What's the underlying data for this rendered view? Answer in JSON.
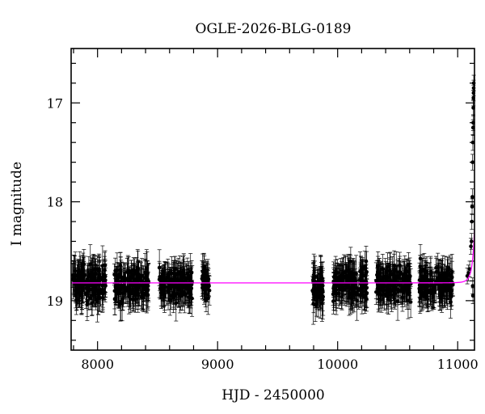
{
  "chart_data": {
    "type": "scatter",
    "title": "OGLE-2026-BLG-0189",
    "xlabel": "HJD - 2450000",
    "ylabel": "I magnitude",
    "xlim": [
      7780,
      11140
    ],
    "ylim": [
      19.5,
      16.45
    ],
    "y_inverted": true,
    "xticks": [
      8000,
      9000,
      10000,
      11000
    ],
    "yticks": [
      17,
      18,
      19
    ],
    "x_minor_step": 200,
    "y_minor_step": 0.2,
    "grid": false,
    "marker_color": "#000000",
    "model_color": "#ff00ff",
    "baseline_mag": 18.82,
    "seasons": [
      {
        "start": 7790,
        "end": 8070,
        "mean": 18.83,
        "scatter": 0.15,
        "error": 0.16
      },
      {
        "start": 8140,
        "end": 8430,
        "mean": 18.83,
        "scatter": 0.14,
        "error": 0.15
      },
      {
        "start": 8510,
        "end": 8790,
        "mean": 18.83,
        "scatter": 0.14,
        "error": 0.15
      },
      {
        "start": 8870,
        "end": 8935,
        "mean": 18.8,
        "scatter": 0.12,
        "error": 0.14
      },
      {
        "start": 9790,
        "end": 9880,
        "mean": 18.86,
        "scatter": 0.16,
        "error": 0.16
      },
      {
        "start": 9960,
        "end": 10250,
        "mean": 18.83,
        "scatter": 0.15,
        "error": 0.16
      },
      {
        "start": 10320,
        "end": 10610,
        "mean": 18.83,
        "scatter": 0.14,
        "error": 0.15
      },
      {
        "start": 10680,
        "end": 10960,
        "mean": 18.83,
        "scatter": 0.14,
        "error": 0.15
      }
    ],
    "event_points": [
      {
        "x": 11080,
        "y": 18.75
      },
      {
        "x": 11090,
        "y": 18.72
      },
      {
        "x": 11100,
        "y": 18.68
      },
      {
        "x": 11110,
        "y": 18.45
      },
      {
        "x": 11115,
        "y": 18.4
      },
      {
        "x": 11118,
        "y": 18.2
      },
      {
        "x": 11120,
        "y": 18.05
      },
      {
        "x": 11122,
        "y": 17.95
      },
      {
        "x": 11124,
        "y": 17.6
      },
      {
        "x": 11126,
        "y": 17.4
      },
      {
        "x": 11128,
        "y": 17.25
      },
      {
        "x": 11129,
        "y": 17.2
      },
      {
        "x": 11130,
        "y": 17.05
      },
      {
        "x": 11131,
        "y": 16.95
      },
      {
        "x": 11132,
        "y": 16.9
      },
      {
        "x": 11133,
        "y": 16.85
      },
      {
        "x": 11134,
        "y": 16.8
      },
      {
        "x": 11125,
        "y": 18.85
      },
      {
        "x": 11127,
        "y": 18.95
      }
    ],
    "model": {
      "type": "line",
      "t0": 11165,
      "tE": 35,
      "u0": 0.12
    }
  }
}
